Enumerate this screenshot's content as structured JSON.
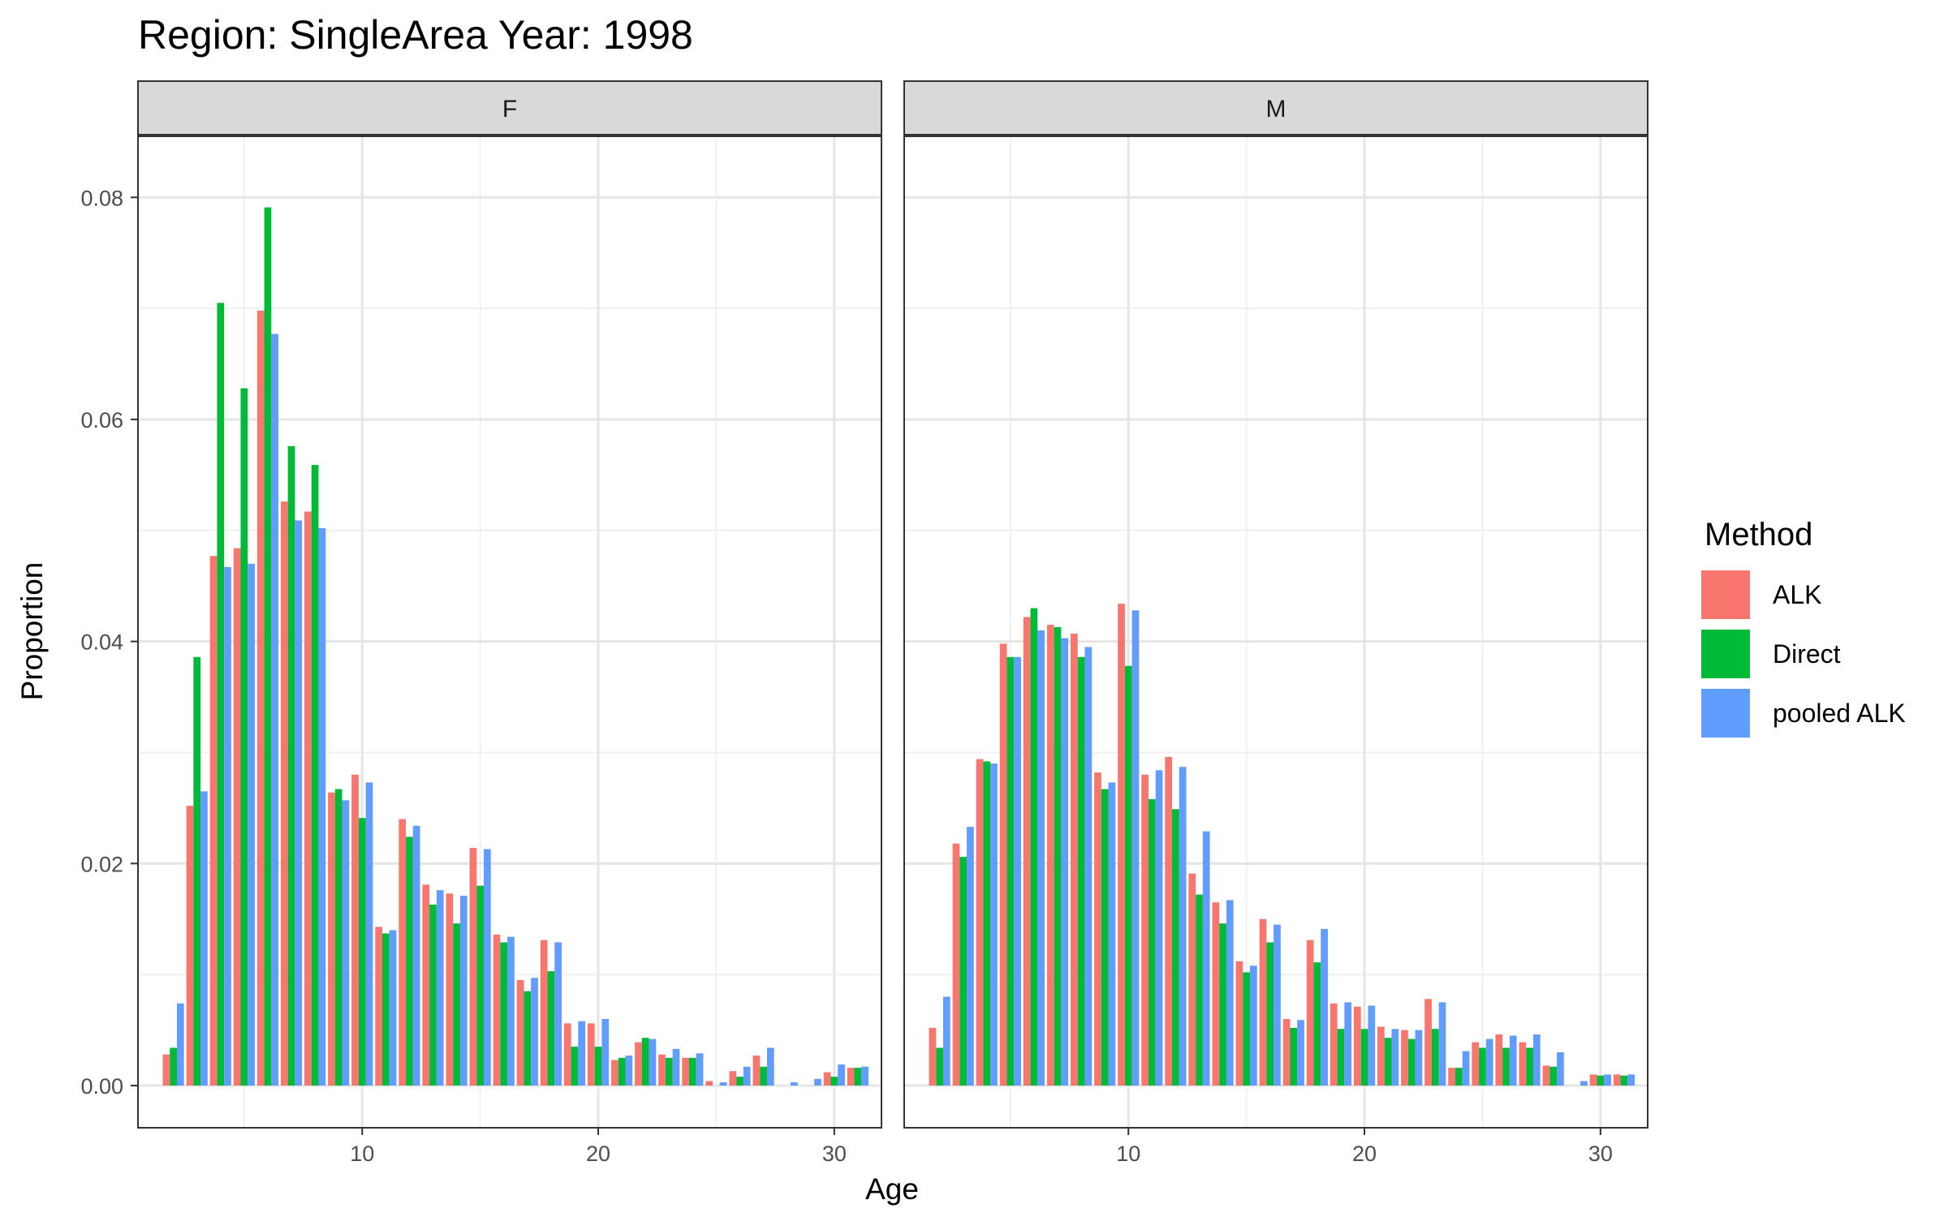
{
  "chart_data": {
    "type": "bar",
    "title": "Region: SingleArea Year: 1998",
    "xlabel": "Age",
    "ylabel": "Proportion",
    "xlim": [
      0.5,
      32
    ],
    "ylim": [
      -0.0038,
      0.0855
    ],
    "x_ticks": [
      10,
      20,
      30
    ],
    "x_tick_labels": [
      "10",
      "20",
      "30"
    ],
    "y_ticks": [
      0,
      0.02,
      0.04,
      0.06,
      0.08
    ],
    "y_tick_labels": [
      "0.00",
      "0.02",
      "0.04",
      "0.06",
      "0.08"
    ],
    "grid": true,
    "legend": {
      "title": "Method",
      "position": "right",
      "entries": [
        "ALK",
        "Direct",
        "pooled ALK"
      ]
    },
    "series_colors": {
      "ALK": "#F8766D",
      "Direct": "#00BA38",
      "pooled ALK": "#619CFF"
    },
    "panels": [
      {
        "label": "F",
        "ages": [
          2,
          3,
          4,
          5,
          6,
          7,
          8,
          9,
          10,
          11,
          12,
          13,
          14,
          15,
          16,
          17,
          18,
          19,
          20,
          21,
          22,
          23,
          24,
          25,
          26,
          27,
          28,
          29,
          30,
          31
        ],
        "series": [
          {
            "name": "ALK",
            "values": [
              0.0028,
              0.0252,
              0.0477,
              0.0484,
              0.0698,
              0.0526,
              0.0517,
              0.0264,
              0.028,
              0.0143,
              0.024,
              0.0181,
              0.0173,
              0.0214,
              0.0136,
              0.0095,
              0.0131,
              0.0056,
              0.0056,
              0.0023,
              0.0039,
              0.0028,
              0.0025,
              0.0004,
              0.0013,
              0.0027,
              0.0,
              0.0,
              0.0012,
              0.0016
            ]
          },
          {
            "name": "Direct",
            "values": [
              0.0034,
              0.0386,
              0.0705,
              0.0628,
              0.0791,
              0.0576,
              0.0559,
              0.0267,
              0.0241,
              0.0137,
              0.0224,
              0.0163,
              0.0146,
              0.018,
              0.0129,
              0.0085,
              0.0103,
              0.0035,
              0.0035,
              0.0025,
              0.0043,
              0.0025,
              0.0025,
              0.0,
              0.0008,
              0.0017,
              0.0,
              0.0,
              0.0008,
              0.0016
            ]
          },
          {
            "name": "pooled ALK",
            "values": [
              0.0074,
              0.0265,
              0.0467,
              0.047,
              0.0677,
              0.0509,
              0.0502,
              0.0257,
              0.0273,
              0.014,
              0.0234,
              0.0176,
              0.0171,
              0.0213,
              0.0134,
              0.0097,
              0.0129,
              0.0058,
              0.006,
              0.0027,
              0.0042,
              0.0033,
              0.0029,
              0.0003,
              0.0017,
              0.0034,
              0.0003,
              0.0006,
              0.0019,
              0.0017
            ]
          }
        ]
      },
      {
        "label": "M",
        "ages": [
          2,
          3,
          4,
          5,
          6,
          7,
          8,
          9,
          10,
          11,
          12,
          13,
          14,
          15,
          16,
          17,
          18,
          19,
          20,
          21,
          22,
          23,
          24,
          25,
          26,
          27,
          28,
          29,
          30,
          31
        ],
        "series": [
          {
            "name": "ALK",
            "values": [
              0.0052,
              0.0218,
              0.0294,
              0.0398,
              0.0422,
              0.0415,
              0.0407,
              0.0282,
              0.0434,
              0.028,
              0.0296,
              0.0191,
              0.0165,
              0.0112,
              0.015,
              0.006,
              0.0131,
              0.0074,
              0.0071,
              0.0053,
              0.005,
              0.0078,
              0.0016,
              0.0039,
              0.0046,
              0.0039,
              0.0018,
              0.0,
              0.001,
              0.001
            ]
          },
          {
            "name": "Direct",
            "values": [
              0.0034,
              0.0206,
              0.0292,
              0.0386,
              0.043,
              0.0413,
              0.0386,
              0.0267,
              0.0378,
              0.0258,
              0.0249,
              0.0172,
              0.0146,
              0.0102,
              0.0129,
              0.0052,
              0.0111,
              0.0051,
              0.0051,
              0.0043,
              0.0042,
              0.0051,
              0.0016,
              0.0034,
              0.0034,
              0.0034,
              0.0017,
              0.0,
              0.0009,
              0.0009
            ]
          },
          {
            "name": "pooled ALK",
            "values": [
              0.008,
              0.0233,
              0.029,
              0.0386,
              0.041,
              0.0403,
              0.0395,
              0.0273,
              0.0428,
              0.0284,
              0.0287,
              0.0229,
              0.0167,
              0.0108,
              0.0145,
              0.0059,
              0.0141,
              0.0075,
              0.0072,
              0.0051,
              0.005,
              0.0075,
              0.0031,
              0.0042,
              0.0045,
              0.0046,
              0.003,
              0.0004,
              0.001,
              0.001
            ]
          }
        ]
      }
    ]
  }
}
